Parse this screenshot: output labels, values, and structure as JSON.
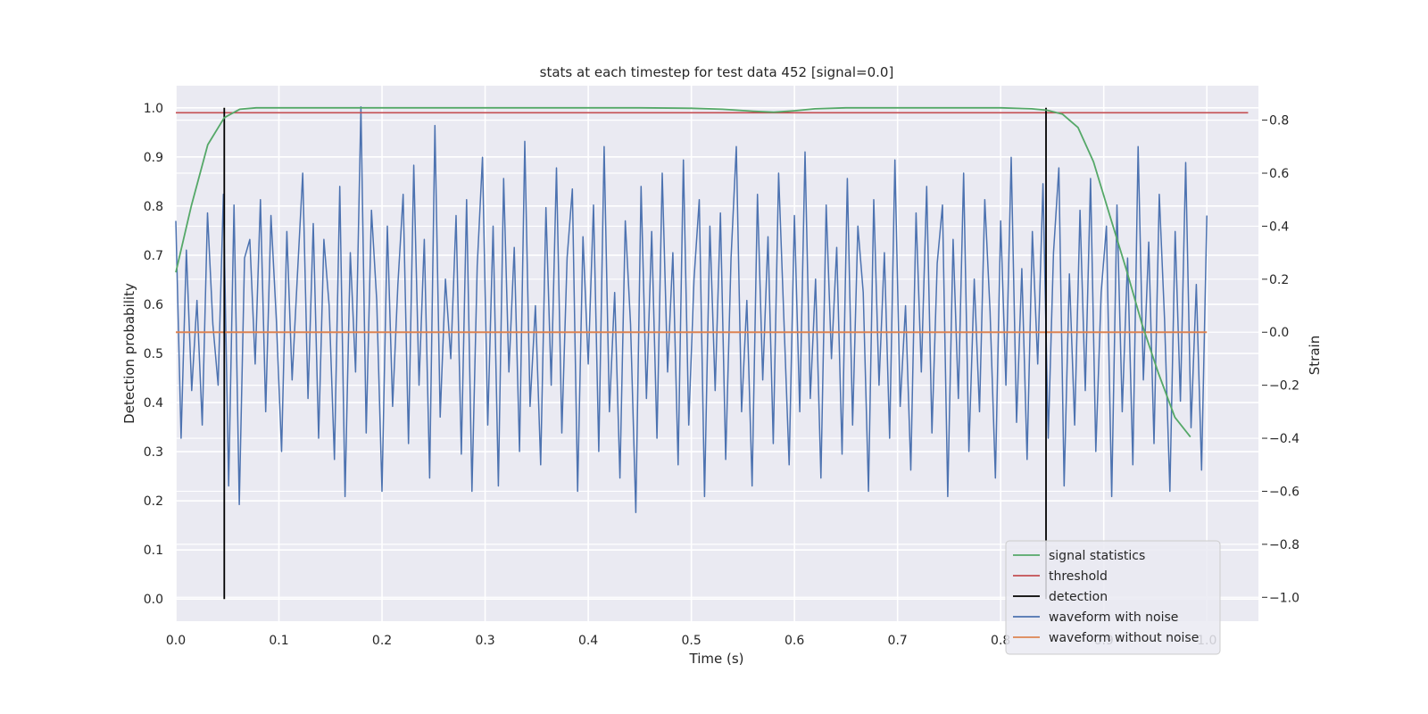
{
  "chart_data": {
    "type": "line",
    "title": "stats at each timestep for test data 452 [signal=0.0]",
    "xlabel": "Time (s)",
    "ylabel_left": "Detection probability",
    "ylabel_right": "Strain",
    "xlim": [
      0.0,
      1.05
    ],
    "ylim_left": [
      -0.045,
      1.045
    ],
    "ylim_right": [
      -1.09,
      0.93
    ],
    "x_ticks": [
      0.0,
      0.1,
      0.2,
      0.3,
      0.4,
      0.5,
      0.6,
      0.7,
      0.8,
      0.9,
      1.0
    ],
    "x_tick_labels": [
      "0.0",
      "0.1",
      "0.2",
      "0.3",
      "0.4",
      "0.5",
      "0.6",
      "0.7",
      "0.8",
      "0.9",
      "1.0"
    ],
    "left_ticks": [
      0.0,
      0.1,
      0.2,
      0.3,
      0.4,
      0.5,
      0.6,
      0.7,
      0.8,
      0.9,
      1.0
    ],
    "left_tick_labels": [
      "0.0",
      "0.1",
      "0.2",
      "0.3",
      "0.4",
      "0.5",
      "0.6",
      "0.7",
      "0.8",
      "0.9",
      "1.0"
    ],
    "right_ticks": [
      -1.0,
      -0.8,
      -0.6,
      -0.4,
      -0.2,
      0.0,
      0.2,
      0.4,
      0.6,
      0.8
    ],
    "right_tick_labels": [
      "−1.0",
      "−0.8",
      "−0.6",
      "−0.4",
      "−0.2",
      "0.0",
      "0.2",
      "0.4",
      "0.6",
      "0.8"
    ],
    "grid": true,
    "legend_position": "lower-right",
    "legend": [
      {
        "label": "signal statistics",
        "color": "#55a868"
      },
      {
        "label": "threshold",
        "color": "#c44e52"
      },
      {
        "label": "detection",
        "color": "#000000"
      },
      {
        "label": "waveform with noise",
        "color": "#4c72b0"
      },
      {
        "label": "waveform without noise",
        "color": "#dd8452"
      }
    ],
    "signal_statistics": {
      "axis": "left",
      "color": "#55a868",
      "x": [
        0.0,
        0.015,
        0.031,
        0.047,
        0.062,
        0.078,
        0.1,
        0.2,
        0.3,
        0.4,
        0.45,
        0.5,
        0.53,
        0.56,
        0.58,
        0.6,
        0.62,
        0.65,
        0.7,
        0.8,
        0.83,
        0.845,
        0.86,
        0.875,
        0.89,
        0.906,
        0.922,
        0.937,
        0.953,
        0.969,
        0.984
      ],
      "y": [
        0.665,
        0.8,
        0.925,
        0.98,
        0.997,
        1.0,
        1.0,
        1.0,
        1.0,
        1.0,
        1.0,
        0.999,
        0.997,
        0.993,
        0.991,
        0.994,
        0.998,
        1.0,
        1.0,
        1.0,
        0.998,
        0.995,
        0.987,
        0.96,
        0.89,
        0.78,
        0.67,
        0.56,
        0.46,
        0.37,
        0.33
      ]
    },
    "threshold": {
      "axis": "left",
      "color": "#c44e52",
      "value": 0.99,
      "x_range": [
        0.0,
        1.04
      ]
    },
    "detections": {
      "axis": "left",
      "color": "#000000",
      "x": [
        0.047,
        0.844
      ],
      "y_range": [
        0.0,
        1.0
      ]
    },
    "waveform_without_noise": {
      "axis": "right",
      "color": "#dd8452",
      "value": 0.0,
      "x_range": [
        0.0,
        1.0
      ]
    },
    "waveform_with_noise": {
      "axis": "right",
      "color": "#4c72b0",
      "x_range": [
        0.0,
        1.0
      ],
      "samples": [
        0.42,
        -0.4,
        0.31,
        -0.22,
        0.12,
        -0.35,
        0.45,
        0.03,
        -0.2,
        0.52,
        -0.58,
        0.48,
        -0.65,
        0.28,
        0.35,
        -0.12,
        0.5,
        -0.3,
        0.44,
        0.05,
        -0.45,
        0.38,
        -0.18,
        0.22,
        0.6,
        -0.25,
        0.41,
        -0.4,
        0.35,
        0.1,
        -0.48,
        0.55,
        -0.62,
        0.3,
        -0.15,
        0.85,
        -0.38,
        0.46,
        0.12,
        -0.6,
        0.4,
        -0.28,
        0.18,
        0.52,
        -0.42,
        0.63,
        -0.2,
        0.35,
        -0.55,
        0.78,
        -0.32,
        0.2,
        -0.1,
        0.44,
        -0.46,
        0.5,
        -0.6,
        0.25,
        0.66,
        -0.35,
        0.4,
        -0.58,
        0.58,
        -0.15,
        0.32,
        -0.45,
        0.72,
        -0.28,
        0.1,
        -0.5,
        0.47,
        -0.2,
        0.62,
        -0.38,
        0.28,
        0.54,
        -0.6,
        0.36,
        -0.12,
        0.48,
        -0.45,
        0.7,
        -0.3,
        0.15,
        -0.55,
        0.42,
        0.03,
        -0.68,
        0.55,
        -0.25,
        0.38,
        -0.4,
        0.6,
        -0.15,
        0.3,
        -0.5,
        0.65,
        -0.35,
        0.2,
        0.5,
        -0.62,
        0.4,
        -0.22,
        0.45,
        -0.48,
        0.28,
        0.7,
        -0.3,
        0.12,
        -0.58,
        0.52,
        -0.18,
        0.36,
        -0.42,
        0.6,
        0.05,
        -0.5,
        0.44,
        -0.3,
        0.68,
        -0.25,
        0.2,
        -0.55,
        0.48,
        -0.1,
        0.32,
        -0.46,
        0.58,
        -0.35,
        0.4,
        0.15,
        -0.6,
        0.5,
        -0.2,
        0.3,
        -0.4,
        0.65,
        -0.28,
        0.1,
        -0.52,
        0.45,
        -0.15,
        0.55,
        -0.38,
        0.26,
        0.48,
        -0.62,
        0.35,
        -0.25,
        0.6,
        -0.45,
        0.2,
        -0.3,
        0.5,
        0.08,
        -0.55,
        0.42,
        -0.2,
        0.66,
        -0.34,
        0.24,
        -0.48,
        0.38,
        -0.12,
        0.56,
        -0.4,
        0.3,
        0.62,
        -0.58,
        0.22,
        -0.35,
        0.46,
        -0.22,
        0.58,
        -0.45,
        0.15,
        0.4,
        -0.62,
        0.48,
        -0.3,
        0.28,
        -0.5,
        0.7,
        -0.18,
        0.34,
        -0.42,
        0.52,
        0.05,
        -0.6,
        0.38,
        -0.26,
        0.64,
        -0.36,
        0.18,
        -0.52,
        0.44
      ]
    }
  }
}
